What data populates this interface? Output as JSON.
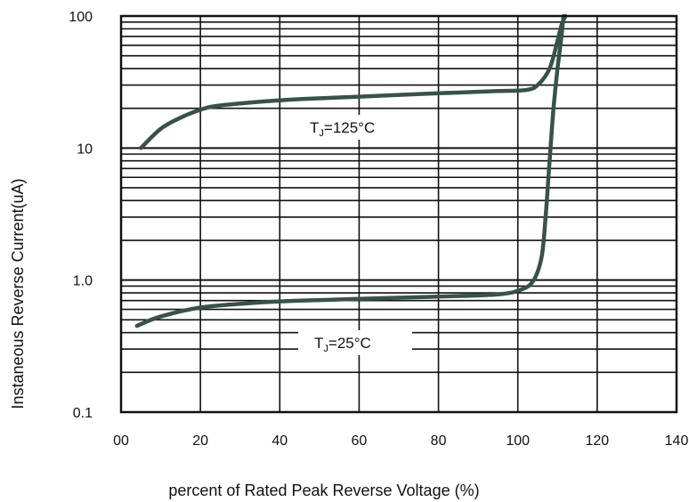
{
  "chart_data": {
    "type": "line",
    "title": "",
    "xlabel": "percent of Rated  Peak Reverse Voltage (%)",
    "ylabel": "Instaneous Reverse Current(uA)",
    "xlim": [
      0,
      140
    ],
    "ylim": [
      0.1,
      100
    ],
    "yscale": "log",
    "grid": true,
    "x_ticks": [
      0,
      20,
      40,
      60,
      80,
      100,
      120,
      140
    ],
    "x_tick_labels": [
      "00",
      "20",
      "40",
      "60",
      "80",
      "100",
      "120",
      "140"
    ],
    "y_ticks": [
      0.1,
      1,
      10,
      100
    ],
    "y_tick_labels": [
      "0.1",
      "1.0",
      "10",
      "100"
    ],
    "series": [
      {
        "name": "TJ=125°C",
        "label_main": "T",
        "label_sub": "J",
        "label_rest": "=125°C",
        "color": "#37524a",
        "x": [
          5,
          10,
          15,
          20,
          25,
          40,
          60,
          80,
          95,
          102,
          105,
          108,
          110,
          111,
          112
        ],
        "y": [
          10,
          14,
          17,
          19.5,
          21,
          23,
          24.5,
          26,
          27,
          27.5,
          30,
          40,
          65,
          85,
          100
        ]
      },
      {
        "name": "TJ=25°C",
        "label_main": "T",
        "label_sub": "J",
        "label_rest": "=25°C",
        "color": "#37524a",
        "x": [
          4,
          10,
          20,
          30,
          40,
          60,
          80,
          95,
          101,
          104,
          106,
          107,
          108,
          109,
          110,
          111,
          111.5
        ],
        "y": [
          0.45,
          0.53,
          0.62,
          0.66,
          0.69,
          0.72,
          0.75,
          0.78,
          0.85,
          1.0,
          1.5,
          3,
          8,
          20,
          40,
          70,
          100
        ]
      }
    ]
  }
}
